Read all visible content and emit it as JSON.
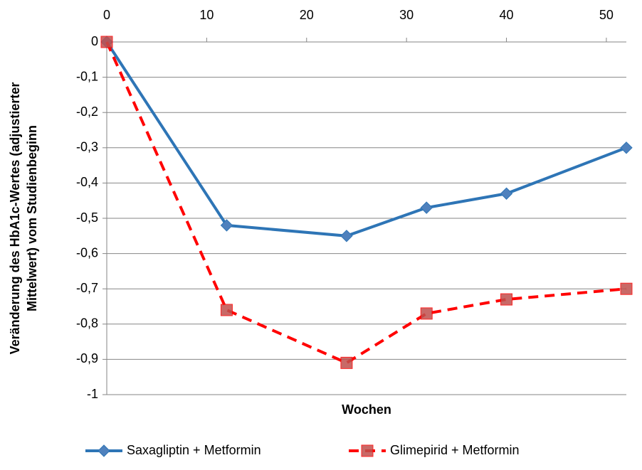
{
  "chart_data": {
    "type": "line",
    "xlabel": "Wochen",
    "ylabel": [
      "Veränderung des HbA1c-Wertes (adjustierter",
      "Mittelwert) vom Studienbeginn"
    ],
    "x": [
      0,
      12,
      24,
      32,
      40,
      52
    ],
    "series": [
      {
        "name": "Saxagliptin + Metformin",
        "color": "#2e75b6",
        "marker": "diamond",
        "marker_color": "#4f81bd",
        "dash": false,
        "values": [
          0,
          -0.52,
          -0.55,
          -0.47,
          -0.43,
          -0.3
        ]
      },
      {
        "name": "Glimepirid + Metformin",
        "color": "#ff0000",
        "marker": "square",
        "marker_color": "#c0504d",
        "dash": true,
        "values": [
          0,
          -0.76,
          -0.91,
          -0.77,
          -0.73,
          -0.7
        ]
      }
    ],
    "xlim": [
      0,
      52
    ],
    "xticks": [
      0,
      10,
      20,
      30,
      40,
      50
    ],
    "ylim": [
      -1,
      0
    ],
    "yticks": [
      0,
      {
        "value": -0.1,
        "label": "-0,1"
      },
      {
        "value": -0.2,
        "label": "-0,2"
      },
      {
        "value": -0.3,
        "label": "-0,3"
      },
      {
        "value": -0.4,
        "label": "-0,4"
      },
      {
        "value": -0.5,
        "label": "-0,5"
      },
      {
        "value": -0.6,
        "label": "-0,6"
      },
      {
        "value": -0.7,
        "label": "-0,7"
      },
      {
        "value": -0.8,
        "label": "-0,8"
      },
      {
        "value": -0.9,
        "label": "-0,9"
      },
      -1
    ],
    "grid": true,
    "legend": "bottom"
  }
}
